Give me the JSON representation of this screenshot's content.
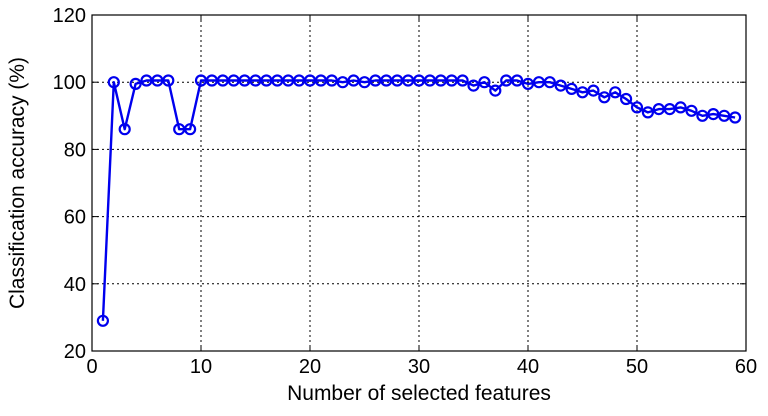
{
  "chart_data": {
    "type": "line",
    "xlabel": "Number of selected features",
    "ylabel": "Classification accuracy (%)",
    "xlim": [
      0,
      60
    ],
    "ylim": [
      20,
      120
    ],
    "xticks": [
      0,
      10,
      20,
      30,
      40,
      50,
      60
    ],
    "yticks": [
      20,
      40,
      60,
      80,
      100,
      120
    ],
    "grid": true,
    "marker": "circle",
    "color": "#0000ee",
    "series": [
      {
        "x": [
          1,
          2,
          3,
          4,
          5,
          6,
          7,
          8,
          9,
          10,
          11,
          12,
          13,
          14,
          15,
          16,
          17,
          18,
          19,
          20,
          21,
          22,
          23,
          24,
          25,
          26,
          27,
          28,
          29,
          30,
          31,
          32,
          33,
          34,
          35,
          36,
          37,
          38,
          39,
          40,
          41,
          42,
          43,
          44,
          45,
          46,
          47,
          48,
          49,
          50,
          51,
          52,
          53,
          54,
          55,
          56,
          57,
          58,
          59
        ],
        "values": [
          29,
          100,
          86,
          99.5,
          100.5,
          100.5,
          100.5,
          86,
          86,
          100.5,
          100.5,
          100.5,
          100.5,
          100.5,
          100.5,
          100.5,
          100.5,
          100.5,
          100.5,
          100.5,
          100.5,
          100.5,
          100,
          100.5,
          100,
          100.5,
          100.5,
          100.5,
          100.5,
          100.5,
          100.5,
          100.5,
          100.5,
          100.5,
          99,
          100,
          97.5,
          100.5,
          100.5,
          99.5,
          100,
          100,
          99,
          98,
          97,
          97.5,
          95.5,
          97,
          95,
          92.5,
          91,
          92,
          92,
          92.5,
          91.5,
          90,
          90.5,
          90,
          89.5
        ]
      }
    ]
  }
}
